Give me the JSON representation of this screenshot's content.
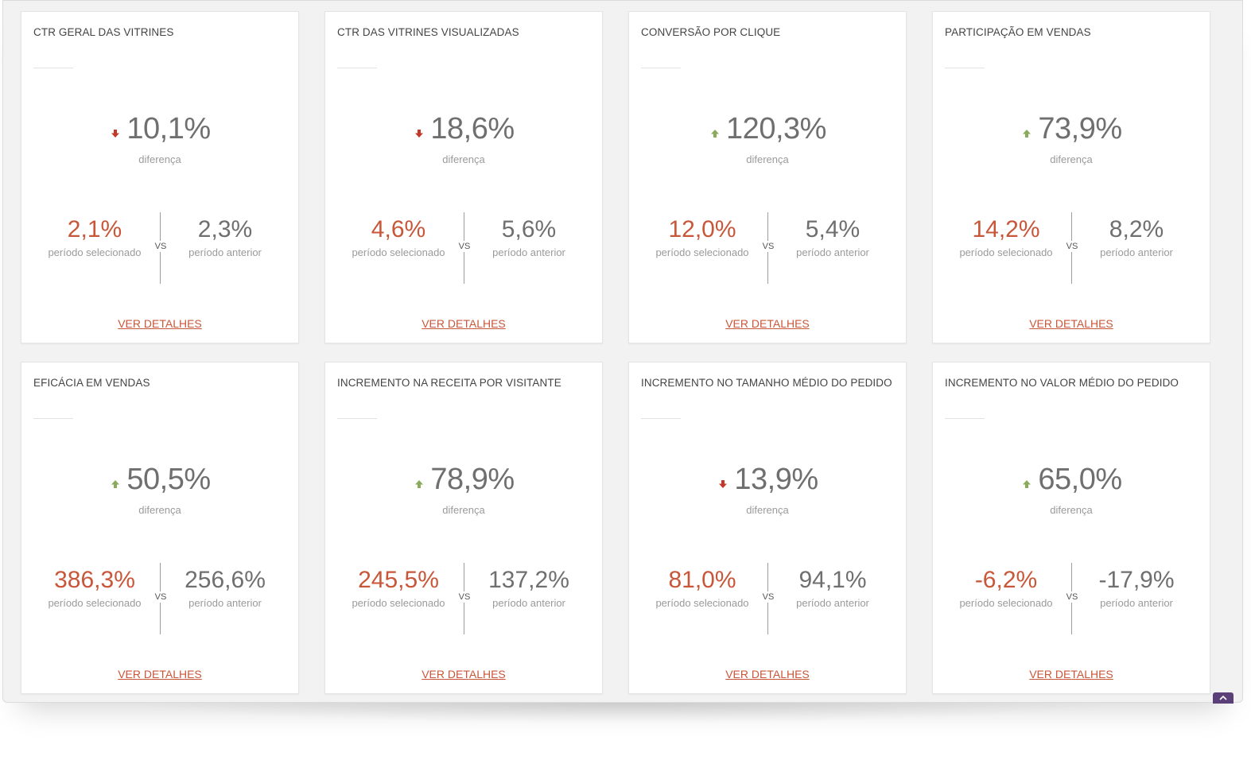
{
  "colors": {
    "down_arrow": "#c0392b",
    "up_arrow": "#8aab5c",
    "selected_value": "#c8573a",
    "details_link": "#c8573a",
    "scroll_button": "#5a3f78"
  },
  "labels": {
    "difference": "diferença",
    "selected_period": "período selecionado",
    "previous_period": "período anterior",
    "vs": "VS",
    "details": "VER DETALHES"
  },
  "cards": [
    {
      "title": "CTR GERAL DAS VITRINES",
      "trend": "down",
      "trend_icon": "arrow-down-icon",
      "difference": "10,1%",
      "selected": "2,1%",
      "previous": "2,3%"
    },
    {
      "title": "CTR DAS VITRINES VISUALIZADAS",
      "trend": "down",
      "trend_icon": "arrow-down-icon",
      "difference": "18,6%",
      "selected": "4,6%",
      "previous": "5,6%"
    },
    {
      "title": "CONVERSÃO POR CLIQUE",
      "trend": "up",
      "trend_icon": "arrow-up-icon",
      "difference": "120,3%",
      "selected": "12,0%",
      "previous": "5,4%"
    },
    {
      "title": "PARTICIPAÇÃO EM VENDAS",
      "trend": "up",
      "trend_icon": "arrow-up-icon",
      "difference": "73,9%",
      "selected": "14,2%",
      "previous": "8,2%"
    },
    {
      "title": "EFICÁCIA EM VENDAS",
      "trend": "up",
      "trend_icon": "arrow-up-icon",
      "difference": "50,5%",
      "selected": "386,3%",
      "previous": "256,6%"
    },
    {
      "title": "INCREMENTO NA RECEITA POR VISITANTE",
      "trend": "up",
      "trend_icon": "arrow-up-icon",
      "difference": "78,9%",
      "selected": "245,5%",
      "previous": "137,2%"
    },
    {
      "title": "INCREMENTO NO TAMANHO MÉDIO DO PEDIDO",
      "trend": "down",
      "trend_icon": "arrow-down-icon",
      "difference": "13,9%",
      "selected": "81,0%",
      "previous": "94,1%"
    },
    {
      "title": "INCREMENTO NO VALOR MÉDIO DO PEDIDO",
      "trend": "up",
      "trend_icon": "arrow-up-icon",
      "difference": "65,0%",
      "selected": "-6,2%",
      "previous": "-17,9%"
    }
  ],
  "scroll_top_icon": "chevron-up-icon"
}
